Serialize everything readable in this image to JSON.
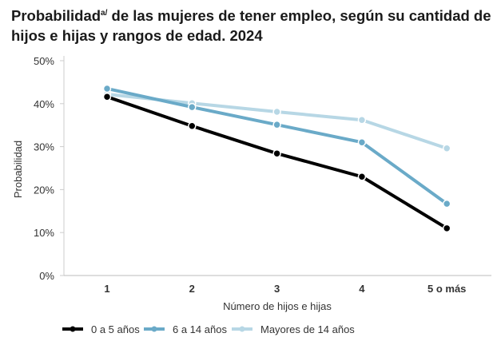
{
  "chart_data": {
    "type": "line",
    "title": "Probabilidad",
    "title_superscript": "a/",
    "title_rest": " de las mujeres de tener empleo, según su cantidad de hijos e hijas y rangos de edad. 2024",
    "xlabel": "Número de hijos e hijas",
    "ylabel": "Probabilidad",
    "categories": [
      "1",
      "2",
      "3",
      "4",
      "5 o más"
    ],
    "ylim": [
      0,
      50
    ],
    "yticks": [
      "0%",
      "10%",
      "20%",
      "30%",
      "40%",
      "50%"
    ],
    "grid": false,
    "legend_position": "bottom",
    "series": [
      {
        "name": "0 a 5 años",
        "color": "#000000",
        "values": [
          41.6,
          34.8,
          28.4,
          23.0,
          11.0
        ]
      },
      {
        "name": "6 a 14 años",
        "color": "#6aaac8",
        "values": [
          43.5,
          39.2,
          35.1,
          31.0,
          16.7
        ]
      },
      {
        "name": "Mayores de 14 años",
        "color": "#b7d7e5",
        "values": [
          42.2,
          40.1,
          38.1,
          36.2,
          29.6
        ]
      }
    ]
  }
}
